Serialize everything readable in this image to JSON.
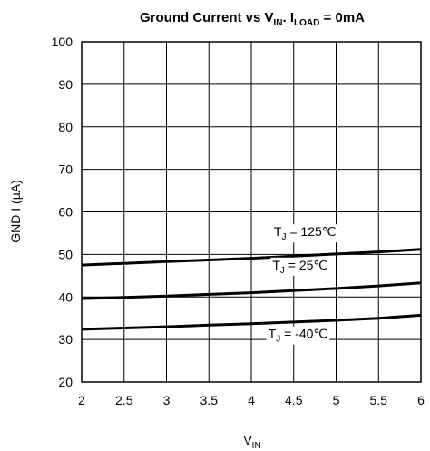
{
  "chart_data": {
    "type": "line",
    "title": "Ground Current vs VIN. ILOAD = 0mA",
    "title_parts": {
      "part1": "Ground Current vs V",
      "sub1": "IN",
      "part2": ". I",
      "sub2": "LOAD",
      "part3": " = 0mA"
    },
    "xlabel": "VIN",
    "xlabel_parts": {
      "main": "V",
      "sub": "IN"
    },
    "ylabel": "GND I (µA)",
    "xlim": [
      2,
      6
    ],
    "ylim": [
      20,
      100
    ],
    "x_ticks": [
      "2",
      "2.5",
      "3",
      "3.5",
      "4",
      "4.5",
      "5",
      "5.5",
      "6"
    ],
    "y_ticks": [
      "20",
      "30",
      "40",
      "50",
      "60",
      "70",
      "80",
      "90",
      "100"
    ],
    "grid": true,
    "series": [
      {
        "name": "TJ = 125℃",
        "label_parts": {
          "main": "T",
          "sub": "J",
          "rest": " = 125℃"
        },
        "x": [
          2,
          2.5,
          3,
          3.5,
          4,
          4.5,
          5,
          5.5,
          6
        ],
        "y": [
          47.5,
          47.9,
          48.3,
          48.7,
          49.1,
          49.6,
          50.1,
          50.6,
          51.2
        ]
      },
      {
        "name": "TJ = 25℃",
        "label_parts": {
          "main": "T",
          "sub": "J",
          "rest": " = 25℃"
        },
        "x": [
          2,
          2.5,
          3,
          3.5,
          4,
          4.5,
          5,
          5.5,
          6
        ],
        "y": [
          39.6,
          39.9,
          40.2,
          40.6,
          41.0,
          41.5,
          42.0,
          42.6,
          43.3
        ]
      },
      {
        "name": "TJ = -40℃",
        "label_parts": {
          "main": "T",
          "sub": "J",
          "rest": " = -40℃"
        },
        "x": [
          2,
          2.5,
          3,
          3.5,
          4,
          4.5,
          5,
          5.5,
          6
        ],
        "y": [
          32.4,
          32.7,
          33.0,
          33.4,
          33.7,
          34.1,
          34.5,
          35.0,
          35.7
        ]
      }
    ]
  }
}
